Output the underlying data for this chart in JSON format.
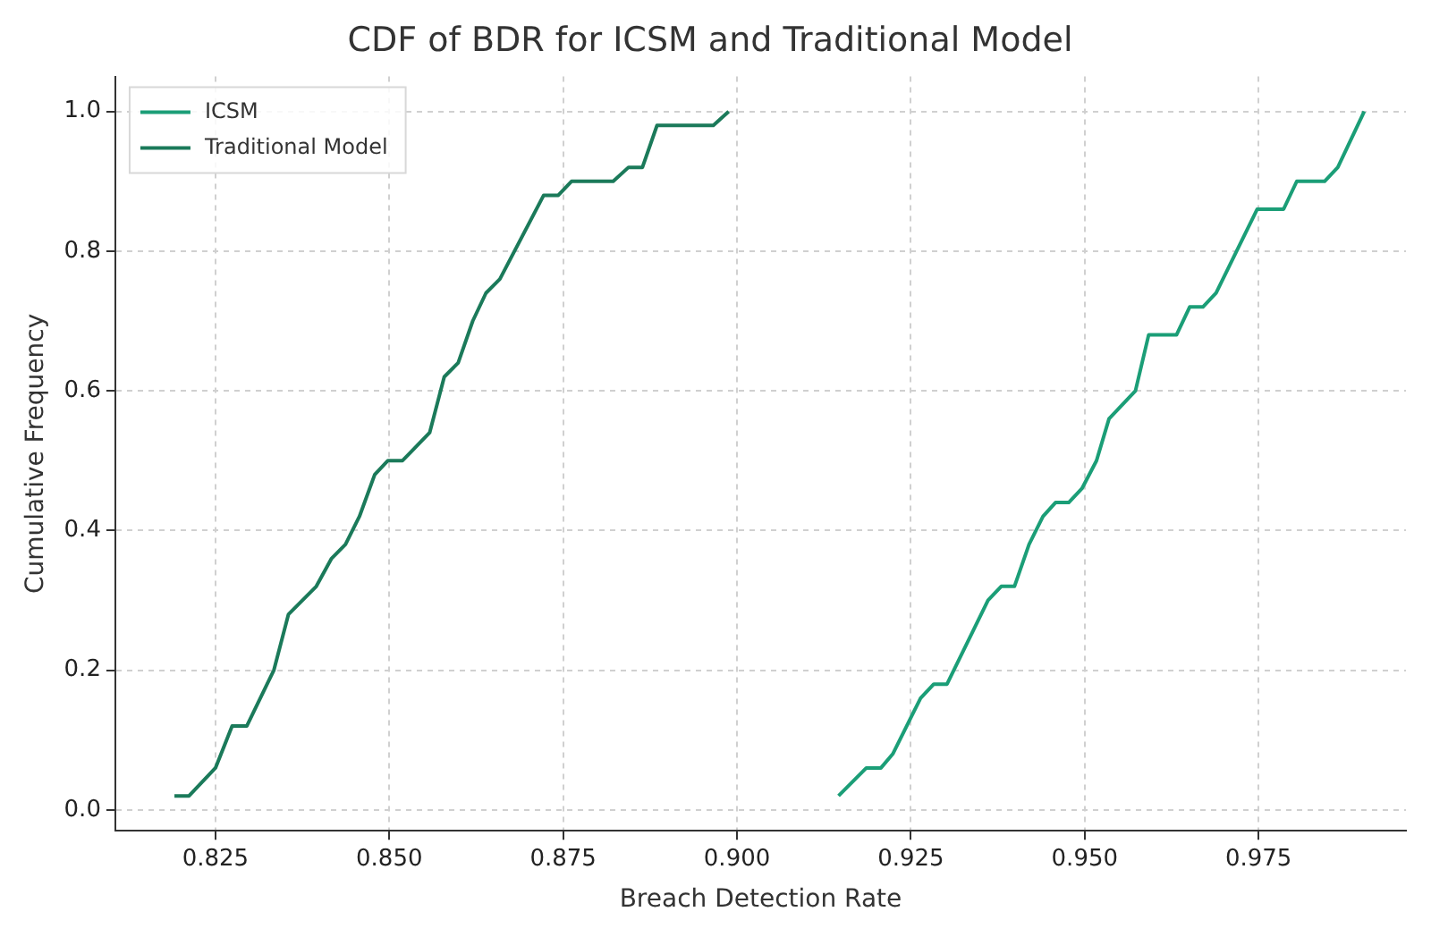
{
  "chart_data": {
    "type": "line",
    "title": "CDF of BDR for ICSM and Traditional Model",
    "xlabel": "Breach Detection Rate",
    "ylabel": "Cumulative Frequency",
    "xlim": [
      0.8106,
      0.9962
    ],
    "xticks": [
      {
        "value": 0.825,
        "label": "0.825"
      },
      {
        "value": 0.85,
        "label": "0.850"
      },
      {
        "value": 0.875,
        "label": "0.875"
      },
      {
        "value": 0.9,
        "label": "0.900"
      },
      {
        "value": 0.925,
        "label": "0.925"
      },
      {
        "value": 0.95,
        "label": "0.950"
      },
      {
        "value": 0.975,
        "label": "0.975"
      }
    ],
    "ylim": [
      -0.03,
      1.05
    ],
    "yticks": [
      {
        "value": 0,
        "label": "0.0"
      },
      {
        "value": 0.2,
        "label": "0.2"
      },
      {
        "value": 0.4,
        "label": "0.4"
      },
      {
        "value": 0.6,
        "label": "0.6"
      },
      {
        "value": 0.8,
        "label": "0.8"
      },
      {
        "value": 1,
        "label": "1.0"
      }
    ],
    "grid": true,
    "legend": "top left",
    "marker": "none",
    "line_style": "solid",
    "series": [
      {
        "name": "ICSM",
        "color": "#1b9e77",
        "x": [
          0.9146,
          0.9186,
          0.9207,
          0.9224,
          0.9264,
          0.9283,
          0.9302,
          0.9361,
          0.938,
          0.9399,
          0.942,
          0.944,
          0.9458,
          0.9477,
          0.9496,
          0.9517,
          0.9535,
          0.9573,
          0.9592,
          0.9632,
          0.9651,
          0.967,
          0.9689,
          0.9748,
          0.9786,
          0.9805,
          0.9845,
          0.9864,
          0.9902
        ],
        "values": [
          0.02,
          0.06,
          0.06,
          0.08,
          0.16,
          0.18,
          0.18,
          0.3,
          0.32,
          0.32,
          0.38,
          0.42,
          0.44,
          0.44,
          0.46,
          0.5,
          0.56,
          0.6,
          0.68,
          0.68,
          0.72,
          0.72,
          0.74,
          0.86,
          0.86,
          0.9,
          0.9,
          0.92,
          1.0
        ]
      },
      {
        "name": "Traditional Model",
        "color": "#1b7a5a",
        "x": [
          0.8191,
          0.8212,
          0.825,
          0.8274,
          0.8295,
          0.8334,
          0.8355,
          0.8395,
          0.8417,
          0.8437,
          0.8457,
          0.8479,
          0.8498,
          0.8519,
          0.8558,
          0.8579,
          0.8599,
          0.862,
          0.8639,
          0.8659,
          0.8722,
          0.8743,
          0.8762,
          0.8822,
          0.8844,
          0.8864,
          0.8885,
          0.8966,
          0.8988
        ],
        "values": [
          0.02,
          0.02,
          0.06,
          0.12,
          0.12,
          0.2,
          0.28,
          0.32,
          0.36,
          0.38,
          0.42,
          0.48,
          0.5,
          0.5,
          0.54,
          0.62,
          0.64,
          0.7,
          0.74,
          0.76,
          0.88,
          0.88,
          0.9,
          0.9,
          0.92,
          0.92,
          0.98,
          0.98,
          1.0
        ]
      }
    ]
  }
}
